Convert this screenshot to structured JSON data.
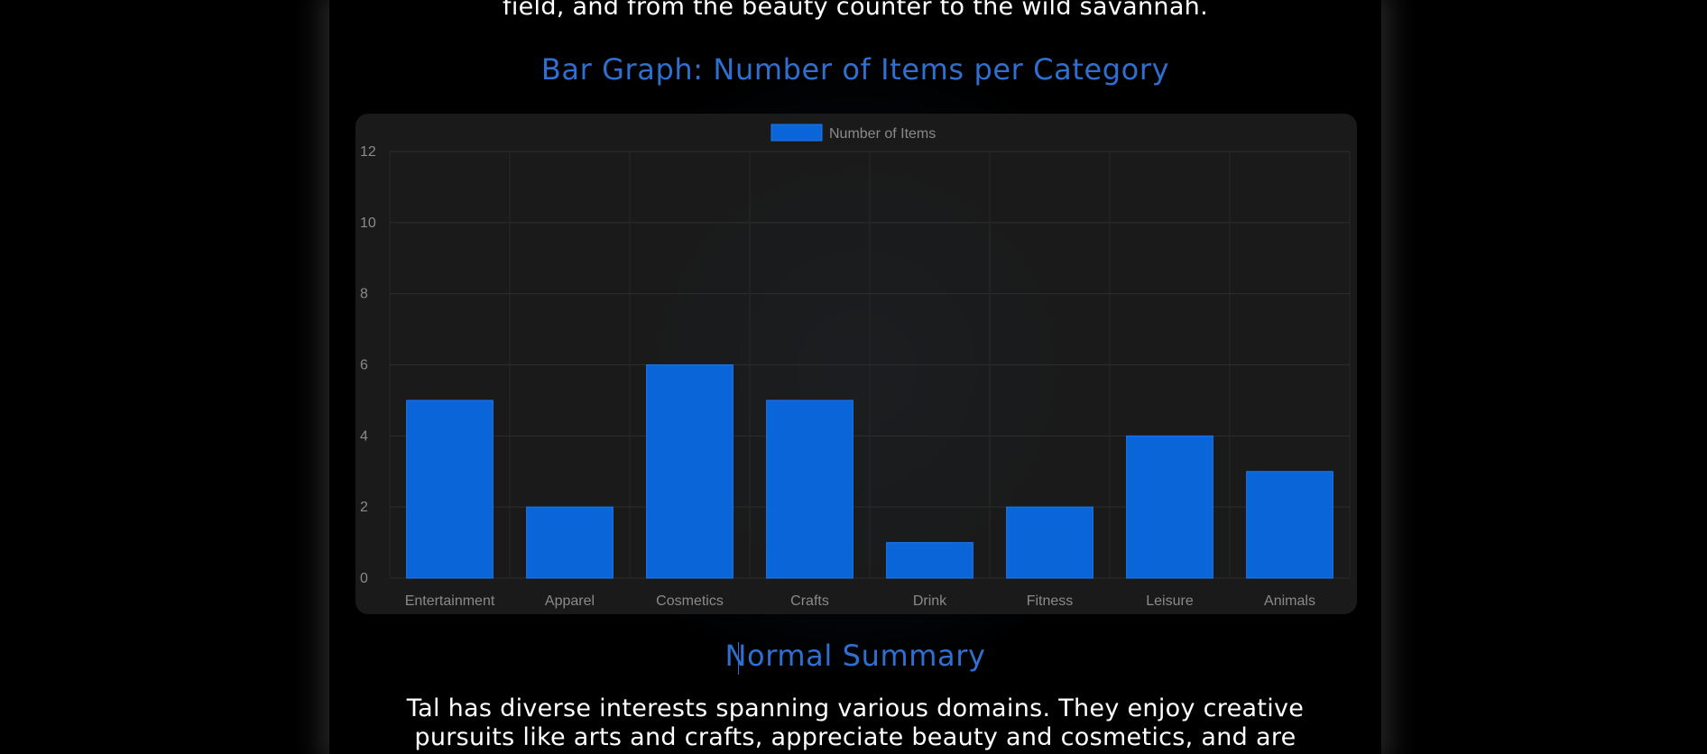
{
  "intro": {
    "text": "field, and from the beauty counter to the wild savannah."
  },
  "chart_section": {
    "heading": "Bar Graph: Number of Items per Category"
  },
  "chart_data": {
    "type": "bar",
    "categories": [
      "Entertainment",
      "Apparel",
      "Cosmetics",
      "Crafts",
      "Drink",
      "Fitness",
      "Leisure",
      "Animals"
    ],
    "series": [
      {
        "name": "Number of Items",
        "values": [
          5,
          2,
          6,
          5,
          1,
          2,
          4,
          3
        ]
      }
    ],
    "yticks": [
      "0",
      "2",
      "4",
      "6",
      "8",
      "10",
      "12"
    ],
    "ylim": [
      0,
      12
    ],
    "grid": true,
    "legend_position": "top-center",
    "bar_color": "#0a66d8"
  },
  "summary": {
    "heading": "Normal Summary",
    "text": "Tal has diverse interests spanning various domains. They enjoy creative pursuits like arts and crafts, appreciate beauty and cosmetics, and are entertained by video"
  },
  "colors": {
    "accent": "#2f6fd0",
    "background": "#000000",
    "card": "#1e1e1e",
    "text": "#ffffff"
  }
}
